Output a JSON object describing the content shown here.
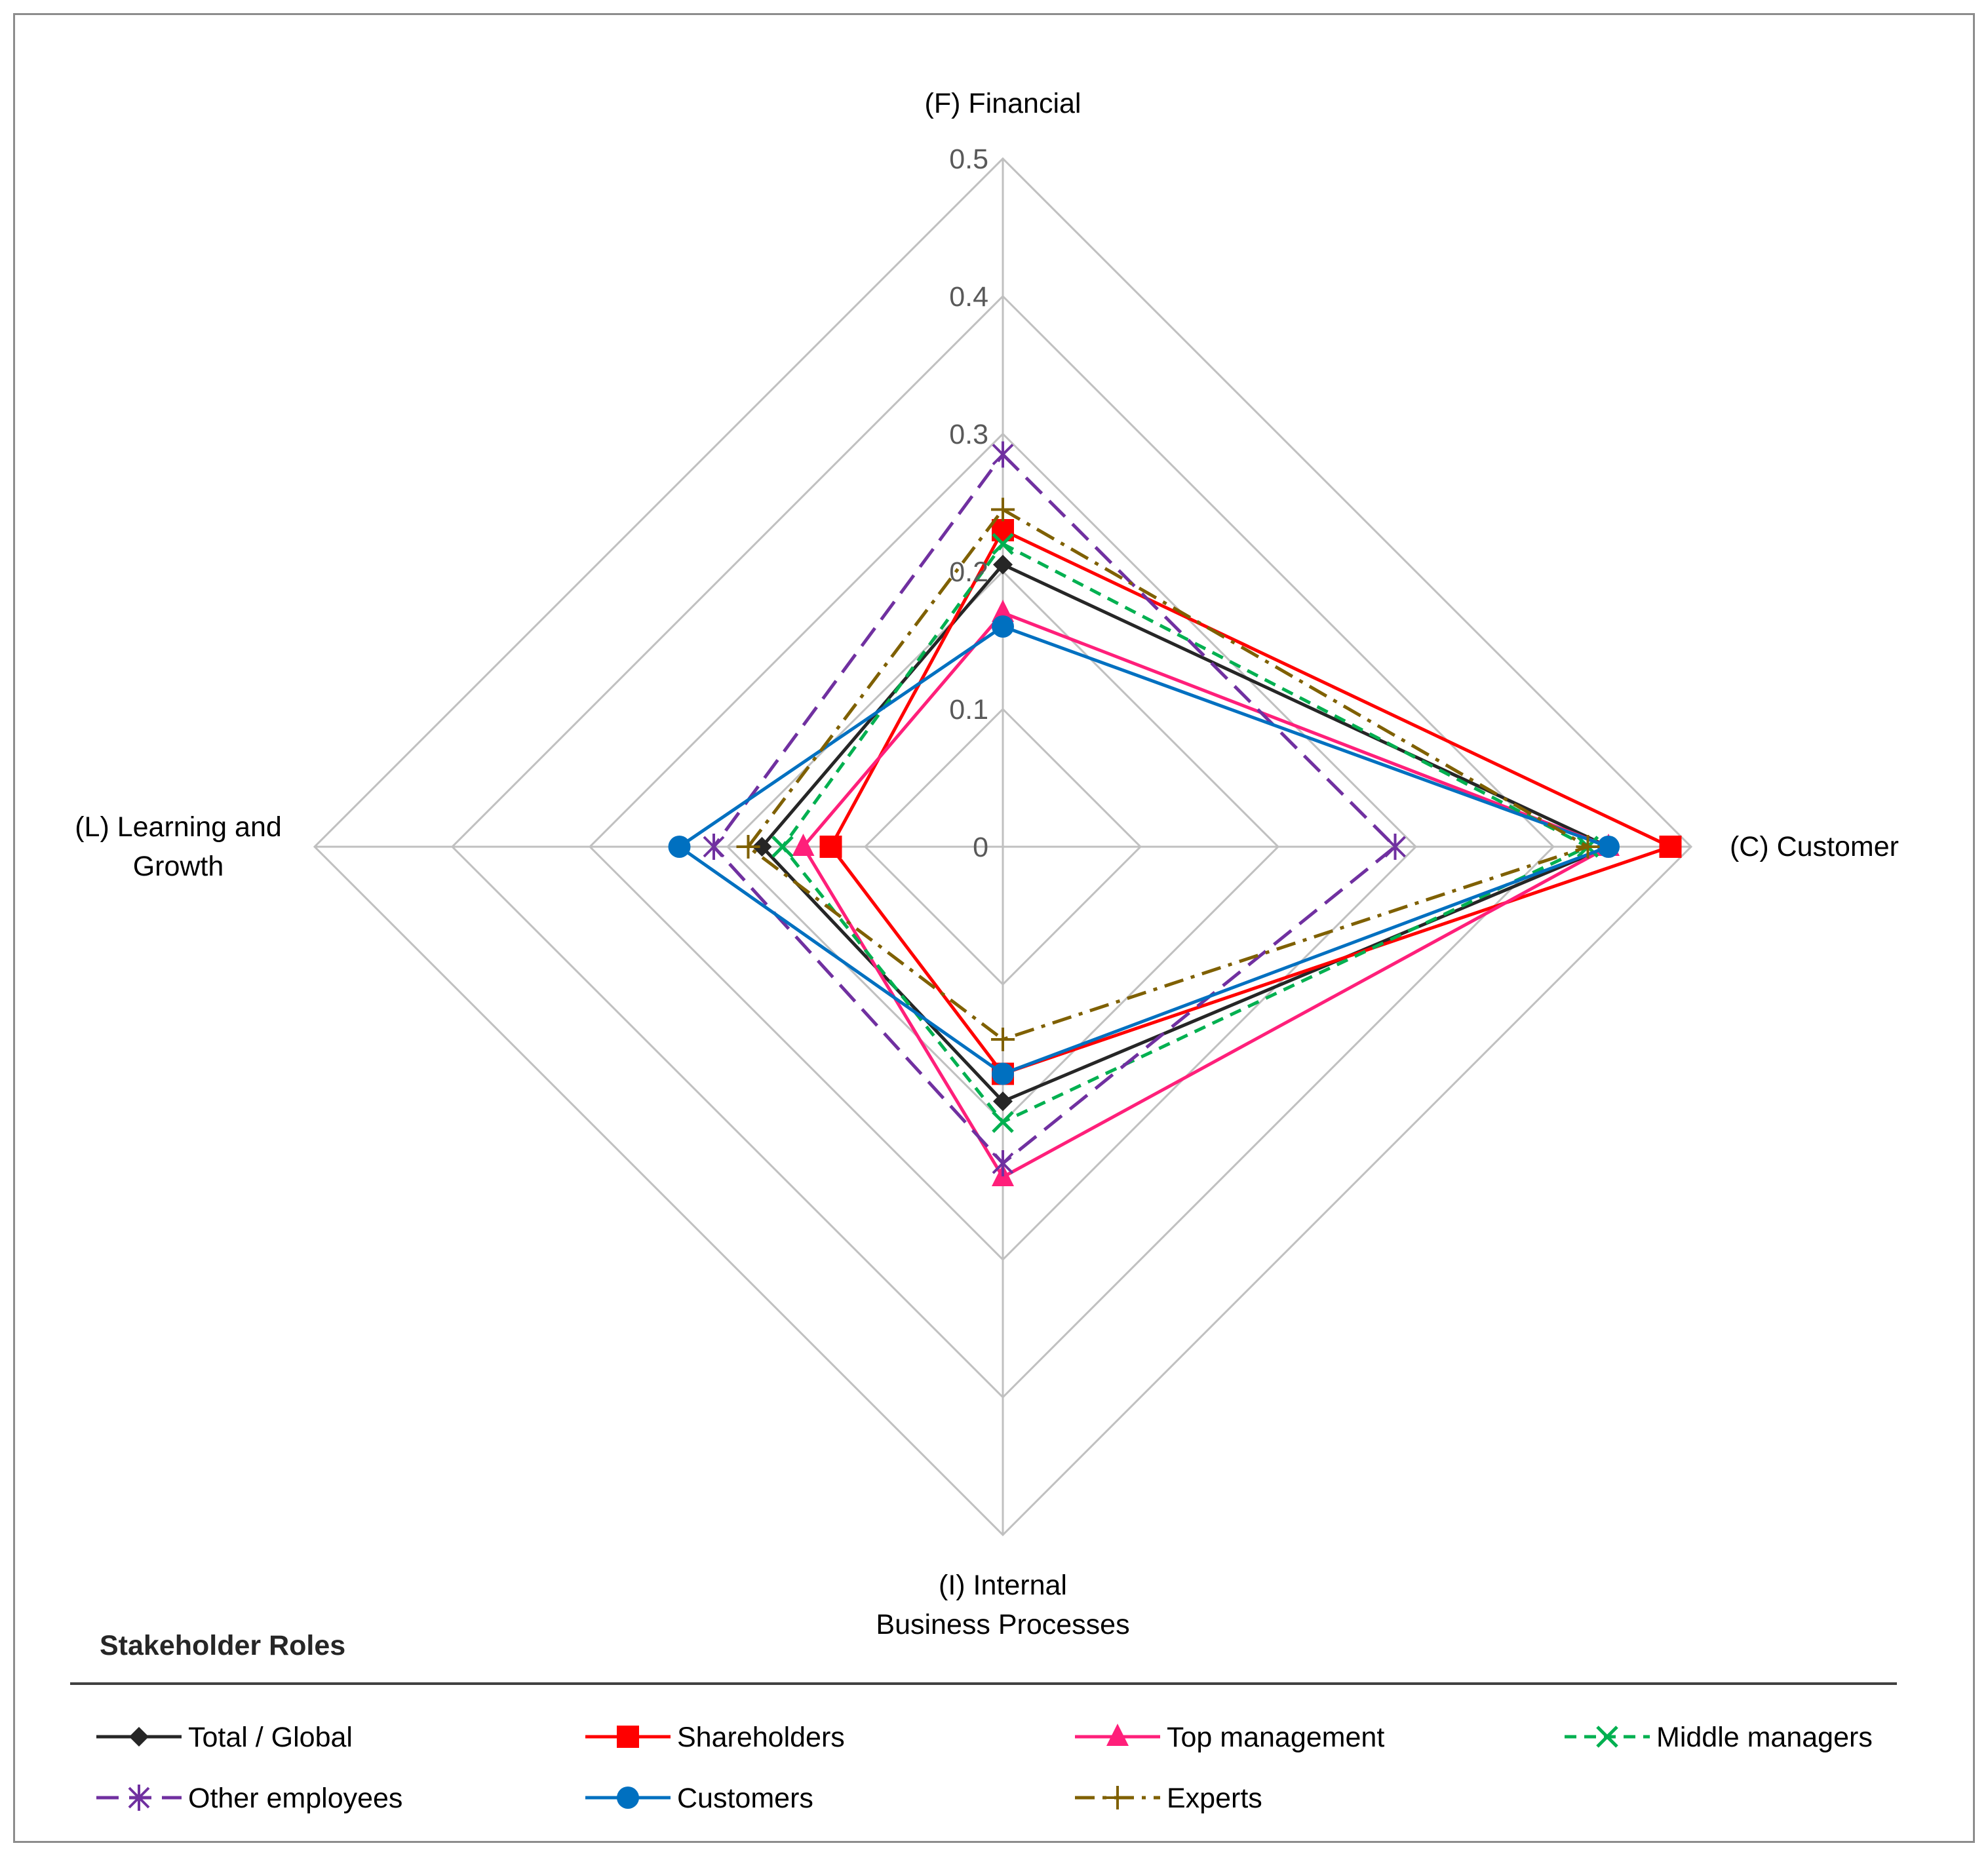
{
  "chart_data": {
    "type": "radar",
    "axes": [
      {
        "key": "F",
        "label_lines": [
          "(F) Financial"
        ]
      },
      {
        "key": "C",
        "label_lines": [
          "(C) Customer"
        ]
      },
      {
        "key": "I",
        "label_lines": [
          "(I) Internal",
          "Business Processes"
        ]
      },
      {
        "key": "L",
        "label_lines": [
          "(L) Learning and",
          "Growth"
        ]
      }
    ],
    "range": [
      0,
      0.5
    ],
    "ticks": [
      "0",
      "0.1",
      "0.2",
      "0.3",
      "0.4",
      "0.5"
    ],
    "tick_values": [
      0,
      0.1,
      0.2,
      0.3,
      0.4,
      0.5
    ],
    "legend_title": "Stakeholder Roles",
    "series": [
      {
        "name": "Total / Global",
        "color": "#262626",
        "dash": "solid",
        "marker": "diamond",
        "values": [
          0.205,
          0.44,
          0.185,
          0.175
        ]
      },
      {
        "name": "Shareholders",
        "color": "#ff0000",
        "dash": "solid",
        "marker": "square",
        "values": [
          0.23,
          0.485,
          0.165,
          0.125
        ]
      },
      {
        "name": "Top management",
        "color": "#ff1f7a",
        "dash": "solid",
        "marker": "triangle",
        "values": [
          0.17,
          0.44,
          0.24,
          0.145
        ]
      },
      {
        "name": "Middle managers",
        "color": "#00b050",
        "dash": "dash",
        "marker": "x",
        "values": [
          0.22,
          0.425,
          0.2,
          0.16
        ]
      },
      {
        "name": "Other employees",
        "color": "#7030a0",
        "dash": "longdash",
        "marker": "star",
        "values": [
          0.285,
          0.285,
          0.23,
          0.21
        ]
      },
      {
        "name": "Customers",
        "color": "#0070c0",
        "dash": "solid",
        "marker": "circle",
        "values": [
          0.16,
          0.44,
          0.165,
          0.235
        ]
      },
      {
        "name": "Experts",
        "color": "#7f6000",
        "dash": "dashdot",
        "marker": "plus",
        "values": [
          0.245,
          0.425,
          0.14,
          0.185
        ]
      }
    ]
  }
}
